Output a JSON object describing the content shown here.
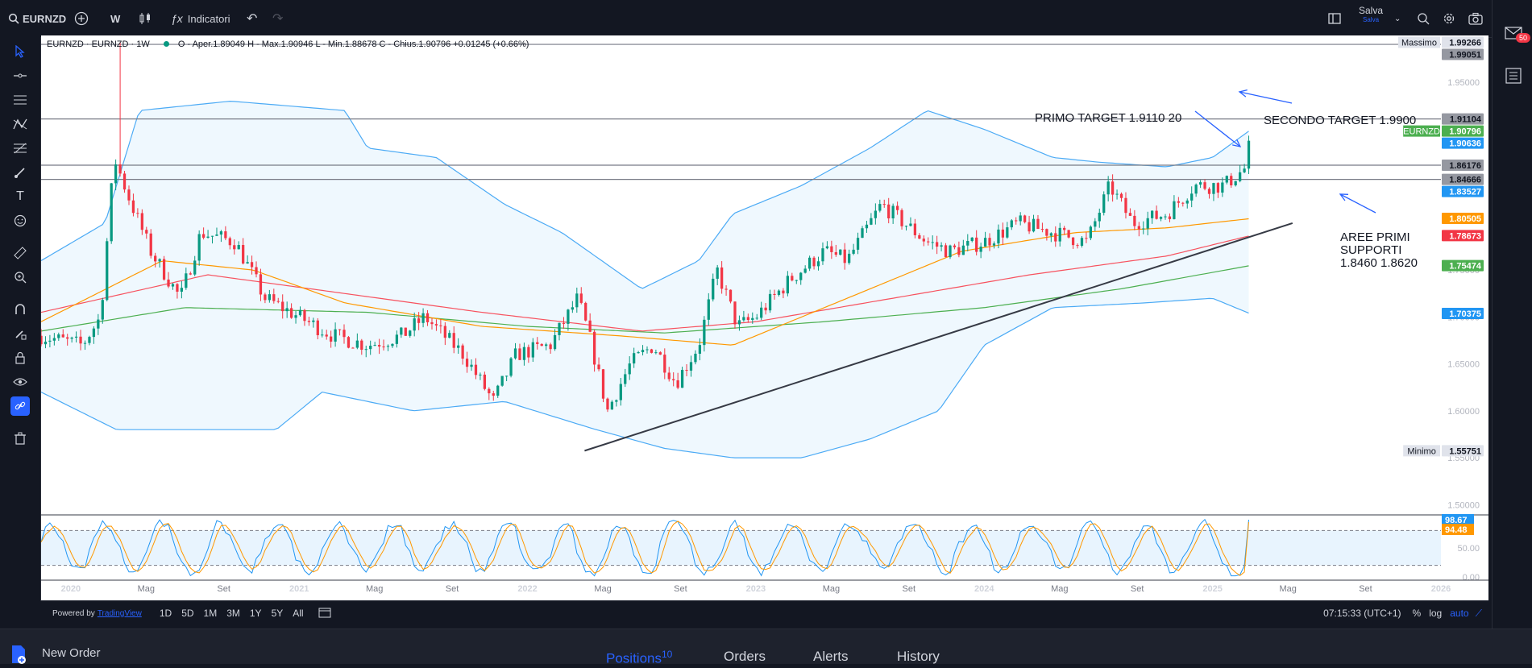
{
  "toolbar": {
    "symbol": "EURNZD",
    "interval": "W",
    "indicators_label": "Indicatori",
    "save_label": "Salva",
    "save_sub": "Salva"
  },
  "notification_count": "50",
  "header": {
    "title": "EURNZD · EURNZD · 1W",
    "ohlc": "O - Aper.1.89049  H - Max.1.90946  L - Min.1.88678  C - Chius.1.90796  +0.01245 (+0.66%)"
  },
  "bottombar": {
    "powered": "Powered by",
    "brand": "TradingView",
    "ranges": [
      "1D",
      "5D",
      "1M",
      "3M",
      "1Y",
      "5Y",
      "All"
    ],
    "clock": "07:15:33 (UTC+1)",
    "pct": "%",
    "log": "log",
    "auto": "auto"
  },
  "panel": {
    "new_order": "New Order",
    "tabs": [
      "Positions",
      "Orders",
      "Alerts",
      "History"
    ],
    "positions_count": "10"
  },
  "colors": {
    "up": "#089981",
    "down": "#f23645",
    "bands": "#2196f3",
    "ema_orange": "#ff9800",
    "ema_red": "#f7525f",
    "ema_green": "#4caf50"
  },
  "chart_data": {
    "type": "candlestick",
    "symbol": "EURNZD",
    "timeframe": "1W",
    "ylim": [
      1.49,
      2.0
    ],
    "y_ticks": [
      "1.50000",
      "1.55000",
      "1.60000",
      "1.65000",
      "1.70000",
      "1.75000",
      "1.95000"
    ],
    "x_ticks": [
      "2020",
      "Mag",
      "Set",
      "2021",
      "Mag",
      "Set",
      "2022",
      "Mag",
      "Set",
      "2023",
      "Mag",
      "Set",
      "2024",
      "Mag",
      "Set",
      "2025",
      "Mag",
      "Set",
      "2026"
    ],
    "x_range": [
      2019.87,
      2026.0
    ],
    "series_anchors": [
      {
        "t": 2019.87,
        "close": 1.68
      },
      {
        "t": 2020.05,
        "close": 1.67
      },
      {
        "t": 2020.13,
        "close": 1.7
      },
      {
        "t": 2020.19,
        "close": 1.87
      },
      {
        "t": 2020.25,
        "close": 1.83
      },
      {
        "t": 2020.35,
        "close": 1.77
      },
      {
        "t": 2020.48,
        "close": 1.72
      },
      {
        "t": 2020.57,
        "close": 1.79
      },
      {
        "t": 2020.72,
        "close": 1.78
      },
      {
        "t": 2020.85,
        "close": 1.72
      },
      {
        "t": 2021.0,
        "close": 1.7
      },
      {
        "t": 2021.15,
        "close": 1.68
      },
      {
        "t": 2021.3,
        "close": 1.67
      },
      {
        "t": 2021.45,
        "close": 1.68
      },
      {
        "t": 2021.55,
        "close": 1.7
      },
      {
        "t": 2021.72,
        "close": 1.66
      },
      {
        "t": 2021.85,
        "close": 1.61
      },
      {
        "t": 2021.95,
        "close": 1.66
      },
      {
        "t": 2022.1,
        "close": 1.67
      },
      {
        "t": 2022.22,
        "close": 1.72
      },
      {
        "t": 2022.27,
        "close": 1.68
      },
      {
        "t": 2022.35,
        "close": 1.6
      },
      {
        "t": 2022.45,
        "close": 1.65
      },
      {
        "t": 2022.55,
        "close": 1.67
      },
      {
        "t": 2022.65,
        "close": 1.63
      },
      {
        "t": 2022.75,
        "close": 1.67
      },
      {
        "t": 2022.83,
        "close": 1.75
      },
      {
        "t": 2022.92,
        "close": 1.69
      },
      {
        "t": 2023.0,
        "close": 1.7
      },
      {
        "t": 2023.15,
        "close": 1.74
      },
      {
        "t": 2023.3,
        "close": 1.77
      },
      {
        "t": 2023.4,
        "close": 1.76
      },
      {
        "t": 2023.55,
        "close": 1.82
      },
      {
        "t": 2023.65,
        "close": 1.8
      },
      {
        "t": 2023.75,
        "close": 1.78
      },
      {
        "t": 2023.85,
        "close": 1.77
      },
      {
        "t": 2024.0,
        "close": 1.78
      },
      {
        "t": 2024.15,
        "close": 1.8
      },
      {
        "t": 2024.3,
        "close": 1.79
      },
      {
        "t": 2024.45,
        "close": 1.78
      },
      {
        "t": 2024.55,
        "close": 1.84
      },
      {
        "t": 2024.65,
        "close": 1.8
      },
      {
        "t": 2024.8,
        "close": 1.81
      },
      {
        "t": 2024.92,
        "close": 1.84
      },
      {
        "t": 2025.05,
        "close": 1.84
      },
      {
        "t": 2025.15,
        "close": 1.86
      },
      {
        "t": 2025.17,
        "close": 1.908
      }
    ],
    "volatility_spike": {
      "t": 2020.22,
      "high": 1.99266
    },
    "bollinger": {
      "upper": [
        {
          "t": 2019.87,
          "v": 1.76
        },
        {
          "t": 2020.15,
          "v": 1.8
        },
        {
          "t": 2020.3,
          "v": 1.92
        },
        {
          "t": 2020.7,
          "v": 1.93
        },
        {
          "t": 2021.2,
          "v": 1.92
        },
        {
          "t": 2021.3,
          "v": 1.88
        },
        {
          "t": 2021.6,
          "v": 1.87
        },
        {
          "t": 2021.9,
          "v": 1.82
        },
        {
          "t": 2022.15,
          "v": 1.79
        },
        {
          "t": 2022.5,
          "v": 1.73
        },
        {
          "t": 2022.75,
          "v": 1.76
        },
        {
          "t": 2022.9,
          "v": 1.81
        },
        {
          "t": 2023.2,
          "v": 1.84
        },
        {
          "t": 2023.5,
          "v": 1.88
        },
        {
          "t": 2023.75,
          "v": 1.92
        },
        {
          "t": 2024.0,
          "v": 1.9
        },
        {
          "t": 2024.3,
          "v": 1.87
        },
        {
          "t": 2024.5,
          "v": 1.865
        },
        {
          "t": 2024.8,
          "v": 1.86
        },
        {
          "t": 2025.0,
          "v": 1.87
        },
        {
          "t": 2025.17,
          "v": 1.9
        }
      ],
      "lower": [
        {
          "t": 2019.87,
          "v": 1.62
        },
        {
          "t": 2020.2,
          "v": 1.58
        },
        {
          "t": 2020.5,
          "v": 1.58
        },
        {
          "t": 2020.9,
          "v": 1.58
        },
        {
          "t": 2021.1,
          "v": 1.62
        },
        {
          "t": 2021.5,
          "v": 1.6
        },
        {
          "t": 2021.9,
          "v": 1.61
        },
        {
          "t": 2022.3,
          "v": 1.58
        },
        {
          "t": 2022.6,
          "v": 1.56
        },
        {
          "t": 2022.9,
          "v": 1.55
        },
        {
          "t": 2023.2,
          "v": 1.55
        },
        {
          "t": 2023.5,
          "v": 1.57
        },
        {
          "t": 2023.8,
          "v": 1.6
        },
        {
          "t": 2024.0,
          "v": 1.67
        },
        {
          "t": 2024.3,
          "v": 1.71
        },
        {
          "t": 2024.7,
          "v": 1.715
        },
        {
          "t": 2025.0,
          "v": 1.72
        },
        {
          "t": 2025.17,
          "v": 1.703
        }
      ]
    },
    "ema_orange": [
      {
        "t": 2019.87,
        "v": 1.695
      },
      {
        "t": 2020.4,
        "v": 1.76
      },
      {
        "t": 2020.8,
        "v": 1.75
      },
      {
        "t": 2021.2,
        "v": 1.715
      },
      {
        "t": 2021.8,
        "v": 1.69
      },
      {
        "t": 2022.4,
        "v": 1.68
      },
      {
        "t": 2022.9,
        "v": 1.67
      },
      {
        "t": 2023.4,
        "v": 1.72
      },
      {
        "t": 2023.9,
        "v": 1.77
      },
      {
        "t": 2024.4,
        "v": 1.79
      },
      {
        "t": 2024.8,
        "v": 1.795
      },
      {
        "t": 2025.17,
        "v": 1.805
      }
    ],
    "ema_red": [
      {
        "t": 2019.87,
        "v": 1.705
      },
      {
        "t": 2020.6,
        "v": 1.745
      },
      {
        "t": 2021.2,
        "v": 1.725
      },
      {
        "t": 2021.8,
        "v": 1.705
      },
      {
        "t": 2022.5,
        "v": 1.685
      },
      {
        "t": 2023.0,
        "v": 1.695
      },
      {
        "t": 2023.6,
        "v": 1.72
      },
      {
        "t": 2024.2,
        "v": 1.745
      },
      {
        "t": 2024.8,
        "v": 1.765
      },
      {
        "t": 2025.17,
        "v": 1.787
      }
    ],
    "ema_green": [
      {
        "t": 2019.87,
        "v": 1.685
      },
      {
        "t": 2020.5,
        "v": 1.71
      },
      {
        "t": 2021.3,
        "v": 1.705
      },
      {
        "t": 2022.0,
        "v": 1.69
      },
      {
        "t": 2022.6,
        "v": 1.683
      },
      {
        "t": 2023.3,
        "v": 1.695
      },
      {
        "t": 2024.0,
        "v": 1.71
      },
      {
        "t": 2024.6,
        "v": 1.73
      },
      {
        "t": 2025.17,
        "v": 1.755
      }
    ],
    "horizontal_lines": [
      1.99051,
      1.91104,
      1.86176,
      1.84666
    ],
    "trendline": {
      "from": {
        "t": 2022.25,
        "v": 1.55751
      },
      "to": {
        "t": 2025.35,
        "v": 1.8
      }
    },
    "price_labels": [
      {
        "text": "1.99266",
        "prefix": "Massimo",
        "value": 1.99266,
        "bg": "#e0e3eb",
        "fg": "#131722"
      },
      {
        "text": "1.99051",
        "value": 1.99051,
        "bg": "#9598a1",
        "fg": "#131722"
      },
      {
        "text": "1.91104",
        "value": 1.91104,
        "bg": "#9598a1",
        "fg": "#131722"
      },
      {
        "text": "1.90796",
        "prefix": "EURNZD",
        "value": 1.90796,
        "bg": "#4caf50",
        "fg": "#ffffff"
      },
      {
        "text": "1.90636",
        "value": 1.90636,
        "bg": "#2196f3",
        "fg": "#ffffff"
      },
      {
        "text": "1.86176",
        "value": 1.86176,
        "bg": "#9598a1",
        "fg": "#131722"
      },
      {
        "text": "1.84666",
        "value": 1.84666,
        "bg": "#9598a1",
        "fg": "#131722"
      },
      {
        "text": "1.83527",
        "value": 1.83527,
        "bg": "#2196f3",
        "fg": "#ffffff"
      },
      {
        "text": "1.80505",
        "value": 1.80505,
        "bg": "#ff9800",
        "fg": "#ffffff"
      },
      {
        "text": "1.78673",
        "value": 1.78673,
        "bg": "#f23645",
        "fg": "#ffffff"
      },
      {
        "text": "1.75474",
        "value": 1.75474,
        "bg": "#4caf50",
        "fg": "#ffffff"
      },
      {
        "text": "1.70375",
        "value": 1.70375,
        "bg": "#2196f3",
        "fg": "#ffffff"
      },
      {
        "text": "1.55751",
        "prefix": "Minimo",
        "value": 1.55751,
        "bg": "#e0e3eb",
        "fg": "#131722"
      }
    ],
    "annotations": {
      "primo": "PRIMO TARGET 1.9110 20",
      "secondo": "SECONDO TARGET  1.9900",
      "aree1": "AREE PRIMI",
      "aree2": "SUPPORTI",
      "aree3": "1.8460 1.8620"
    },
    "oscillator": {
      "ylim": [
        0,
        100
      ],
      "y_ticks": [
        "50.00",
        "0.00"
      ],
      "levels": [
        80,
        20
      ],
      "k_last": 98.67,
      "d_last": 94.48,
      "k_label": "98.67",
      "d_label": "94.48"
    }
  }
}
